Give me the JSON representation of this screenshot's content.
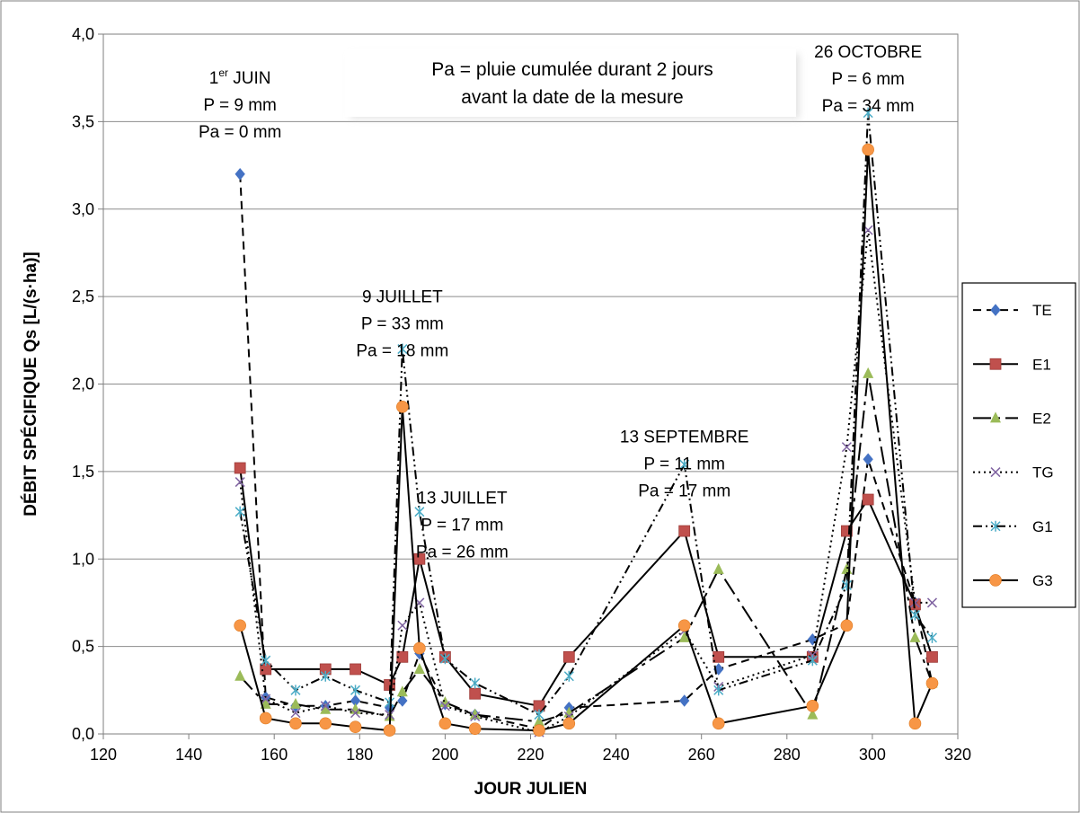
{
  "chart_data": {
    "type": "line",
    "xlabel": "JOUR JULIEN",
    "ylabel": "DÉBIT SPÉCIFIQUE Qs [L/(s·ha)]",
    "xlim": [
      120,
      320
    ],
    "ylim": [
      0,
      4
    ],
    "x_ticks": [
      "120",
      "140",
      "160",
      "180",
      "200",
      "220",
      "240",
      "260",
      "280",
      "300",
      "320"
    ],
    "y_ticks": [
      "0,0",
      "0,5",
      "1,0",
      "1,5",
      "2,0",
      "2,5",
      "3,0",
      "3,5",
      "4,0"
    ],
    "grid": "horizontal",
    "legend_position": "right",
    "note": [
      "Pa = pluie cumulée durant 2 jours",
      "avant la date de la mesure"
    ],
    "annotations": [
      {
        "lines": [
          "1er JUIN",
          "P = 9 mm",
          "Pa = 0 mm"
        ],
        "x": 152,
        "y": 3.85
      },
      {
        "lines": [
          "9 JUILLET",
          "P = 33 mm",
          "Pa = 18 mm"
        ],
        "x": 190,
        "y": 2.6
      },
      {
        "lines": [
          "13 JUILLET",
          "P = 17 mm",
          "Pa = 26 mm"
        ],
        "x": 204,
        "y": 1.45
      },
      {
        "lines": [
          "13 SEPTEMBRE",
          "P = 11 mm",
          "Pa = 17 mm"
        ],
        "x": 256,
        "y": 1.8
      },
      {
        "lines": [
          "26 OCTOBRE",
          "P = 6 mm",
          "Pa = 34 mm"
        ],
        "x": 299,
        "y": 4.0
      }
    ],
    "series": [
      {
        "name": "TE",
        "color": "#4472C4",
        "marker": "diamond",
        "dash": "9,6",
        "x": [
          152,
          158,
          165,
          172,
          179,
          187,
          190,
          194,
          200,
          207,
          222,
          229,
          256,
          264,
          286,
          294,
          299,
          310,
          314
        ],
        "y": [
          3.2,
          0.21,
          0.16,
          0.16,
          0.19,
          0.15,
          0.19,
          0.46,
          0.17,
          0.11,
          0.03,
          0.15,
          0.19,
          0.37,
          0.54,
          0.63,
          1.57,
          0.75,
          0.29
        ]
      },
      {
        "name": "E1",
        "color": "#C0504D",
        "marker": "square",
        "dash": "",
        "x": [
          152,
          158,
          172,
          179,
          187,
          190,
          194,
          200,
          207,
          222,
          229,
          256,
          264,
          286,
          294,
          299,
          310,
          314
        ],
        "y": [
          1.52,
          0.37,
          0.37,
          0.37,
          0.28,
          0.44,
          1.0,
          0.44,
          0.23,
          0.16,
          0.44,
          1.16,
          0.44,
          0.44,
          1.16,
          1.34,
          0.74,
          0.44
        ]
      },
      {
        "name": "E2",
        "color": "#9BBB59",
        "marker": "triangle",
        "dash": "20,6,4,6",
        "x": [
          152,
          158,
          165,
          172,
          179,
          187,
          190,
          194,
          200,
          207,
          222,
          229,
          256,
          264,
          286,
          294,
          299,
          310,
          314
        ],
        "y": [
          0.33,
          0.17,
          0.17,
          0.14,
          0.14,
          0.1,
          0.24,
          0.37,
          0.18,
          0.11,
          0.07,
          0.12,
          0.55,
          0.94,
          0.11,
          0.94,
          2.06,
          0.55,
          0.29
        ]
      },
      {
        "name": "TG",
        "color": "#8064A2",
        "marker": "x",
        "dash": "2,4",
        "x": [
          152,
          158,
          165,
          172,
          179,
          187,
          190,
          194,
          200,
          207,
          222,
          229,
          256,
          264,
          286,
          294,
          299,
          310,
          314
        ],
        "y": [
          1.44,
          0.2,
          0.12,
          0.16,
          0.12,
          0.11,
          0.62,
          0.75,
          0.16,
          0.1,
          0.01,
          0.1,
          0.59,
          0.27,
          0.45,
          1.64,
          2.88,
          0.75,
          0.75
        ]
      },
      {
        "name": "G1",
        "color": "#4BACC6",
        "marker": "star",
        "dash": "10,4,2,4,2,4",
        "x": [
          152,
          158,
          165,
          172,
          179,
          187,
          190,
          194,
          200,
          207,
          222,
          229,
          256,
          264,
          286,
          294,
          299,
          310,
          314
        ],
        "y": [
          1.27,
          0.42,
          0.25,
          0.33,
          0.25,
          0.18,
          2.2,
          1.27,
          0.43,
          0.29,
          0.11,
          0.33,
          1.54,
          0.25,
          0.42,
          0.85,
          3.55,
          0.68,
          0.55
        ]
      },
      {
        "name": "G3",
        "color": "#F79646",
        "marker": "circle",
        "dash": "",
        "x": [
          152,
          158,
          165,
          172,
          179,
          187,
          190,
          194,
          200,
          207,
          222,
          229,
          256,
          264,
          286,
          294,
          299,
          310,
          314
        ],
        "y": [
          0.62,
          0.09,
          0.06,
          0.06,
          0.04,
          0.02,
          1.87,
          0.49,
          0.06,
          0.03,
          0.02,
          0.06,
          0.62,
          0.06,
          0.16,
          0.62,
          3.34,
          0.06,
          0.29
        ]
      }
    ]
  }
}
